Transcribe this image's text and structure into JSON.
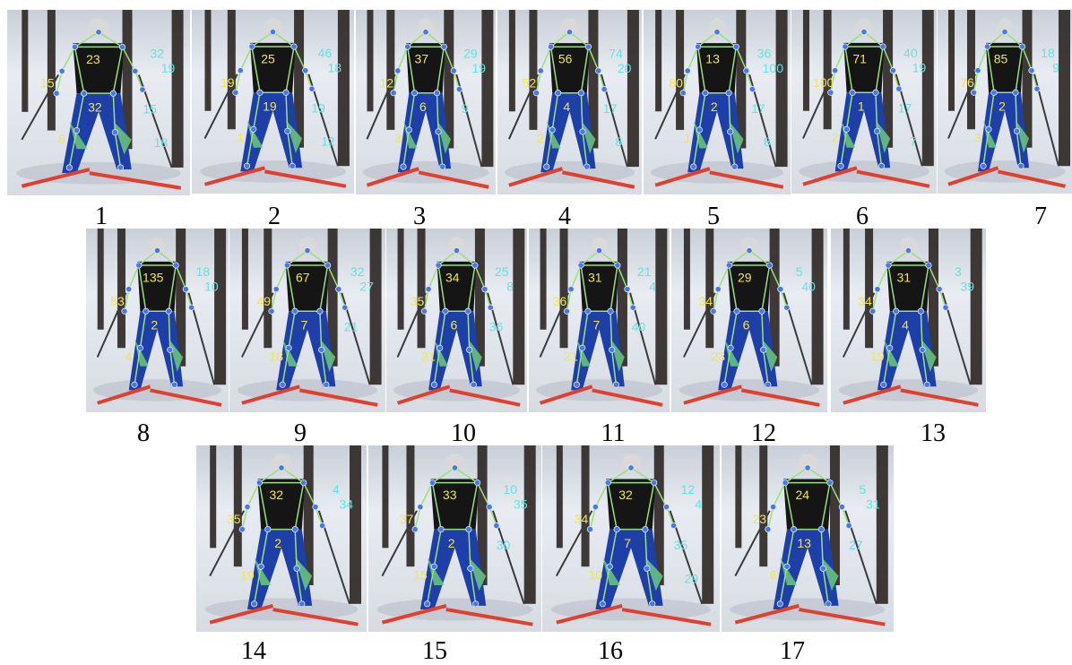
{
  "frames": [
    {
      "label": "1",
      "values": [
        "23",
        "15",
        "32",
        "8",
        "32",
        "19",
        "15",
        "18"
      ]
    },
    {
      "label": "2",
      "values": [
        "25",
        "19",
        "19",
        "1",
        "46",
        "18",
        "19",
        "12"
      ]
    },
    {
      "label": "3",
      "values": [
        "37",
        "12",
        "6",
        "3",
        "29",
        "19",
        "9"
      ]
    },
    {
      "label": "4",
      "values": [
        "56",
        "52",
        "4",
        "2",
        "74",
        "20",
        "17",
        "8"
      ]
    },
    {
      "label": "5",
      "values": [
        "13",
        "80",
        "2",
        "1",
        "36",
        "100",
        "17",
        "8"
      ]
    },
    {
      "label": "6",
      "values": [
        "71",
        "100",
        "1",
        "2",
        "40",
        "19",
        "17",
        "7"
      ]
    },
    {
      "label": "7",
      "values": [
        "85",
        "76",
        "2",
        "3",
        "18",
        "9"
      ]
    },
    {
      "label": "8",
      "values": [
        "135",
        "53",
        "2",
        "4",
        "18",
        "10"
      ]
    },
    {
      "label": "9",
      "values": [
        "67",
        "49",
        "7",
        "18",
        "32",
        "27",
        "21"
      ]
    },
    {
      "label": "10",
      "values": [
        "34",
        "35",
        "6",
        "21",
        "25",
        "8",
        "36"
      ]
    },
    {
      "label": "11",
      "values": [
        "31",
        "36",
        "7",
        "21",
        "21",
        "4",
        "40"
      ]
    },
    {
      "label": "12",
      "values": [
        "29",
        "34",
        "6",
        "23",
        "5",
        "40"
      ]
    },
    {
      "label": "13",
      "values": [
        "31",
        "34",
        "4",
        "19",
        "3",
        "39"
      ]
    },
    {
      "label": "14",
      "values": [
        "32",
        "35",
        "2",
        "19",
        "4",
        "34"
      ]
    },
    {
      "label": "15",
      "values": [
        "33",
        "37",
        "2",
        "15",
        "10",
        "35",
        "30"
      ]
    },
    {
      "label": "16",
      "values": [
        "32",
        "34",
        "7",
        "10",
        "12",
        "4",
        "35",
        "29"
      ]
    },
    {
      "label": "17",
      "values": [
        "24",
        "23",
        "13",
        "6",
        "5",
        "31",
        "27"
      ]
    }
  ],
  "colors": {
    "angle_yellow": "#f2e64a",
    "angle_cyan": "#5fe3e3",
    "joint": "#4a78e0",
    "bone": "#9be07a",
    "ski": "#e0402f"
  }
}
